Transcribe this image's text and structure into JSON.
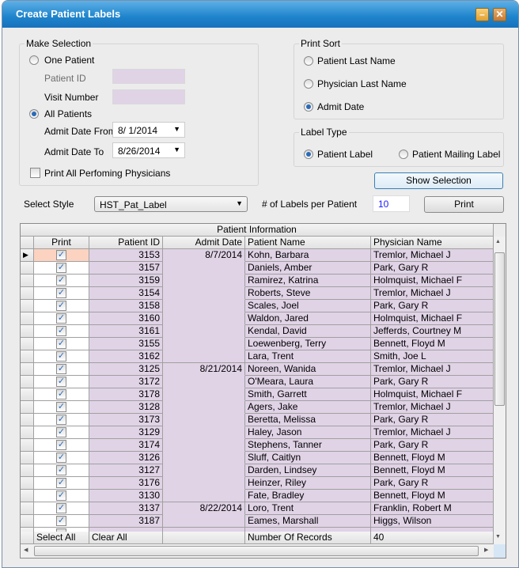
{
  "window": {
    "title": "Create Patient Labels",
    "minimize_icon": "minimize-icon",
    "close_icon": "close-icon"
  },
  "make_selection": {
    "label": "Make Selection",
    "one_patient": "One Patient",
    "patient_id_label": "Patient ID",
    "patient_id_value": "",
    "visit_number_label": "Visit Number",
    "visit_number_value": "",
    "all_patients": "All Patients",
    "selected": "All Patients",
    "admit_from_label": "Admit Date From",
    "admit_from": "8/ 1/2014",
    "admit_to_label": "Admit Date To",
    "admit_to": "8/26/2014",
    "print_all_physicians": "Print All Perfoming Physicians",
    "print_all_physicians_checked": false
  },
  "print_sort": {
    "label": "Print Sort",
    "options": [
      "Patient Last Name",
      "Physician Last Name",
      "Admit Date"
    ],
    "selected": "Admit Date"
  },
  "label_type": {
    "label": "Label Type",
    "options": [
      "Patient Label",
      "Patient Mailing Label"
    ],
    "selected": "Patient Label"
  },
  "show_selection": "Show Selection",
  "style": {
    "label": "Select Style",
    "value": "HST_Pat_Label"
  },
  "labels_per_patient": {
    "label": "# of Labels per Patient",
    "value": "10"
  },
  "print_button": "Print",
  "grid": {
    "group_header": "Patient Information",
    "columns": [
      "Print",
      "Patient ID",
      "Admit Date",
      "Patient Name",
      "Physician Name"
    ],
    "rows": [
      {
        "print": true,
        "id": "3153",
        "date": "8/7/2014",
        "name": "Kohn, Barbara",
        "physician": "Tremlor, Michael J"
      },
      {
        "print": true,
        "id": "3157",
        "date": "",
        "name": "Daniels, Amber",
        "physician": "Park, Gary R"
      },
      {
        "print": true,
        "id": "3159",
        "date": "",
        "name": "Ramirez, Katrina",
        "physician": "Holmquist, Michael F"
      },
      {
        "print": true,
        "id": "3154",
        "date": "",
        "name": "Roberts, Steve",
        "physician": "Tremlor, Michael J"
      },
      {
        "print": true,
        "id": "3158",
        "date": "",
        "name": "Scales, Joel",
        "physician": "Park, Gary R"
      },
      {
        "print": true,
        "id": "3160",
        "date": "",
        "name": "Waldon, Jared",
        "physician": "Holmquist, Michael F"
      },
      {
        "print": true,
        "id": "3161",
        "date": "",
        "name": "Kendal, David",
        "physician": "Jefferds, Courtney M"
      },
      {
        "print": true,
        "id": "3155",
        "date": "",
        "name": "Loewenberg, Terry",
        "physician": "Bennett, Floyd M"
      },
      {
        "print": true,
        "id": "3162",
        "date": "",
        "name": "Lara, Trent",
        "physician": "Smith, Joe L"
      },
      {
        "print": true,
        "id": "3125",
        "date": "8/21/2014",
        "name": "Noreen, Wanida",
        "physician": "Tremlor, Michael J"
      },
      {
        "print": true,
        "id": "3172",
        "date": "",
        "name": "O'Meara, Laura",
        "physician": "Park, Gary R"
      },
      {
        "print": true,
        "id": "3178",
        "date": "",
        "name": "Smith, Garrett",
        "physician": "Holmquist, Michael F"
      },
      {
        "print": true,
        "id": "3128",
        "date": "",
        "name": "Agers, Jake",
        "physician": "Tremlor, Michael J"
      },
      {
        "print": true,
        "id": "3173",
        "date": "",
        "name": "Beretta, Melissa",
        "physician": "Park, Gary R"
      },
      {
        "print": true,
        "id": "3129",
        "date": "",
        "name": "Haley, Jason",
        "physician": "Tremlor, Michael J"
      },
      {
        "print": true,
        "id": "3174",
        "date": "",
        "name": "Stephens, Tanner",
        "physician": "Park, Gary R"
      },
      {
        "print": true,
        "id": "3126",
        "date": "",
        "name": "Sluff, Caitlyn",
        "physician": "Bennett, Floyd M"
      },
      {
        "print": true,
        "id": "3127",
        "date": "",
        "name": "Darden, Lindsey",
        "physician": "Bennett, Floyd M"
      },
      {
        "print": true,
        "id": "3176",
        "date": "",
        "name": "Heinzer, Riley",
        "physician": "Park, Gary R"
      },
      {
        "print": true,
        "id": "3130",
        "date": "",
        "name": "Fate, Bradley",
        "physician": "Bennett, Floyd M"
      },
      {
        "print": true,
        "id": "3137",
        "date": "8/22/2014",
        "name": "Loro, Trent",
        "physician": "Franklin, Robert M"
      },
      {
        "print": true,
        "id": "3187",
        "date": "",
        "name": "Eames, Marshall",
        "physician": "Higgs, Wilson"
      }
    ],
    "footer": {
      "select_all": "Select All",
      "clear_all": "Clear All",
      "records_label": "Number Of Records",
      "records_value": "40"
    }
  },
  "colors": {
    "title_bar": "#1e84cc",
    "input_bg": "#e0d3e6",
    "current_row": "#fcd3c0",
    "radio_on": "#2a6ab8"
  }
}
